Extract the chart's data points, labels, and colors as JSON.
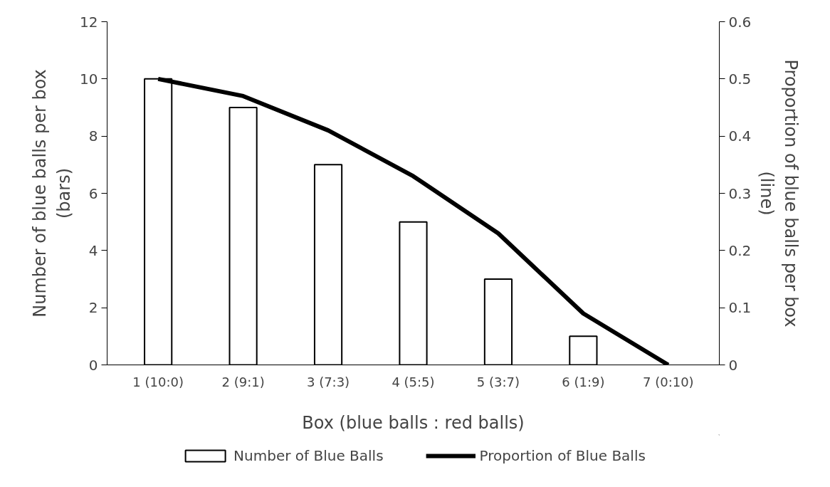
{
  "chart_data": {
    "type": "bar",
    "xlabel": "Box (blue balls : red balls)",
    "ylabel": "Number of blue balls per box\n(bars)",
    "y2label": "Proportion of blue balls per box\n(line)",
    "categories": [
      "1 (10:0)",
      "2 (9:1)",
      "3 (7:3)",
      "4 (5:5)",
      "5 (3:7)",
      "6 (1:9)",
      "7 (0:10)"
    ],
    "series": [
      {
        "name": "Number of Blue Balls",
        "color": "#ffffff",
        "values": [
          10,
          9,
          7,
          5,
          3,
          1,
          0
        ]
      },
      {
        "name": "Proportion of Blue Balls",
        "type": "line",
        "axis": "y2",
        "color": "#000000",
        "values": [
          0.5,
          0.47,
          0.41,
          0.33,
          0.23,
          0.09,
          0
        ]
      }
    ],
    "ylim": [
      0,
      12
    ],
    "yticks": [
      0,
      2,
      4,
      6,
      8,
      10,
      12
    ],
    "y2lim": [
      0,
      0.6
    ],
    "y2ticks": [
      0,
      0.1,
      0.2,
      0.3,
      0.4,
      0.5,
      0.6
    ],
    "grid": false,
    "legend": "bottom",
    "marker": "none",
    "line_style": "solid"
  }
}
